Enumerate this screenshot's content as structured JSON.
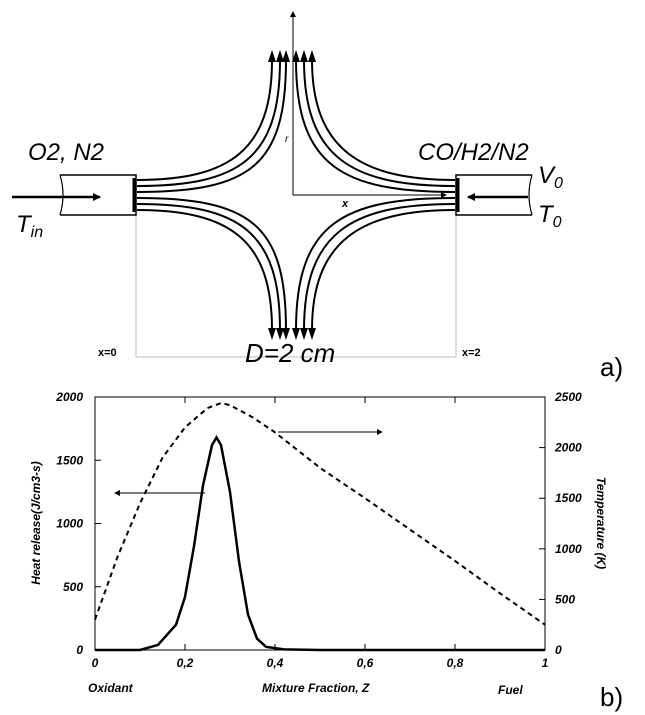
{
  "panel_a": {
    "label": "a)",
    "left_inlet_species": "O2, N2",
    "right_inlet_species": "CO/H2/N2",
    "left_temp_symbol": "T",
    "left_temp_subscript": "in",
    "right_velocity_symbol": "V",
    "right_velocity_subscript": "0",
    "right_temp_symbol": "T",
    "right_temp_subscript": "0",
    "axis_r_label": "r",
    "axis_x_label": "x",
    "left_position_label": "x=0",
    "right_position_label": "x=2",
    "gap_label": "D=2 cm"
  },
  "panel_b": {
    "label": "b)",
    "bottom_left_label": "Oxidant",
    "bottom_right_label": "Fuel"
  },
  "chart_data": {
    "type": "line",
    "xlabel": "Mixture Fraction, Z",
    "ylabel": "Heat release(J/cm3-s)",
    "y2label": "Temperature (K)",
    "xlim": [
      0,
      1
    ],
    "ylim": [
      0,
      2000
    ],
    "y2lim": [
      0,
      2500
    ],
    "x_ticks": [
      "0",
      "0,2",
      "0,4",
      "0,6",
      "0,8",
      "1"
    ],
    "y_ticks": [
      "0",
      "500",
      "1000",
      "1500",
      "2000"
    ],
    "y2_ticks": [
      "0",
      "500",
      "1000",
      "1500",
      "2000",
      "2500"
    ],
    "series": [
      {
        "axis": "left",
        "style": "solid",
        "x": [
          0,
          0.1,
          0.14,
          0.18,
          0.2,
          0.22,
          0.24,
          0.26,
          0.27,
          0.28,
          0.3,
          0.32,
          0.34,
          0.36,
          0.38,
          0.42,
          0.5,
          1.0
        ],
        "y": [
          0,
          0,
          40,
          200,
          420,
          820,
          1300,
          1620,
          1680,
          1620,
          1250,
          700,
          280,
          90,
          25,
          5,
          0,
          0
        ]
      },
      {
        "axis": "right",
        "style": "dashed",
        "x": [
          0,
          0.05,
          0.1,
          0.15,
          0.2,
          0.25,
          0.28,
          0.3,
          0.35,
          0.4,
          0.5,
          0.6,
          0.7,
          0.8,
          0.9,
          1.0
        ],
        "y": [
          300,
          920,
          1450,
          1900,
          2200,
          2390,
          2440,
          2420,
          2300,
          2150,
          1800,
          1500,
          1190,
          880,
          560,
          250
        ]
      }
    ],
    "annotations": [
      {
        "type": "arrow",
        "direction": "left",
        "points_to": "left axis",
        "curve": "solid"
      },
      {
        "type": "arrow",
        "direction": "right",
        "points_to": "right axis",
        "curve": "dashed"
      }
    ]
  },
  "colors": {
    "ink": "#000000",
    "background": "#ffffff",
    "guide": "#bbbbbb"
  }
}
